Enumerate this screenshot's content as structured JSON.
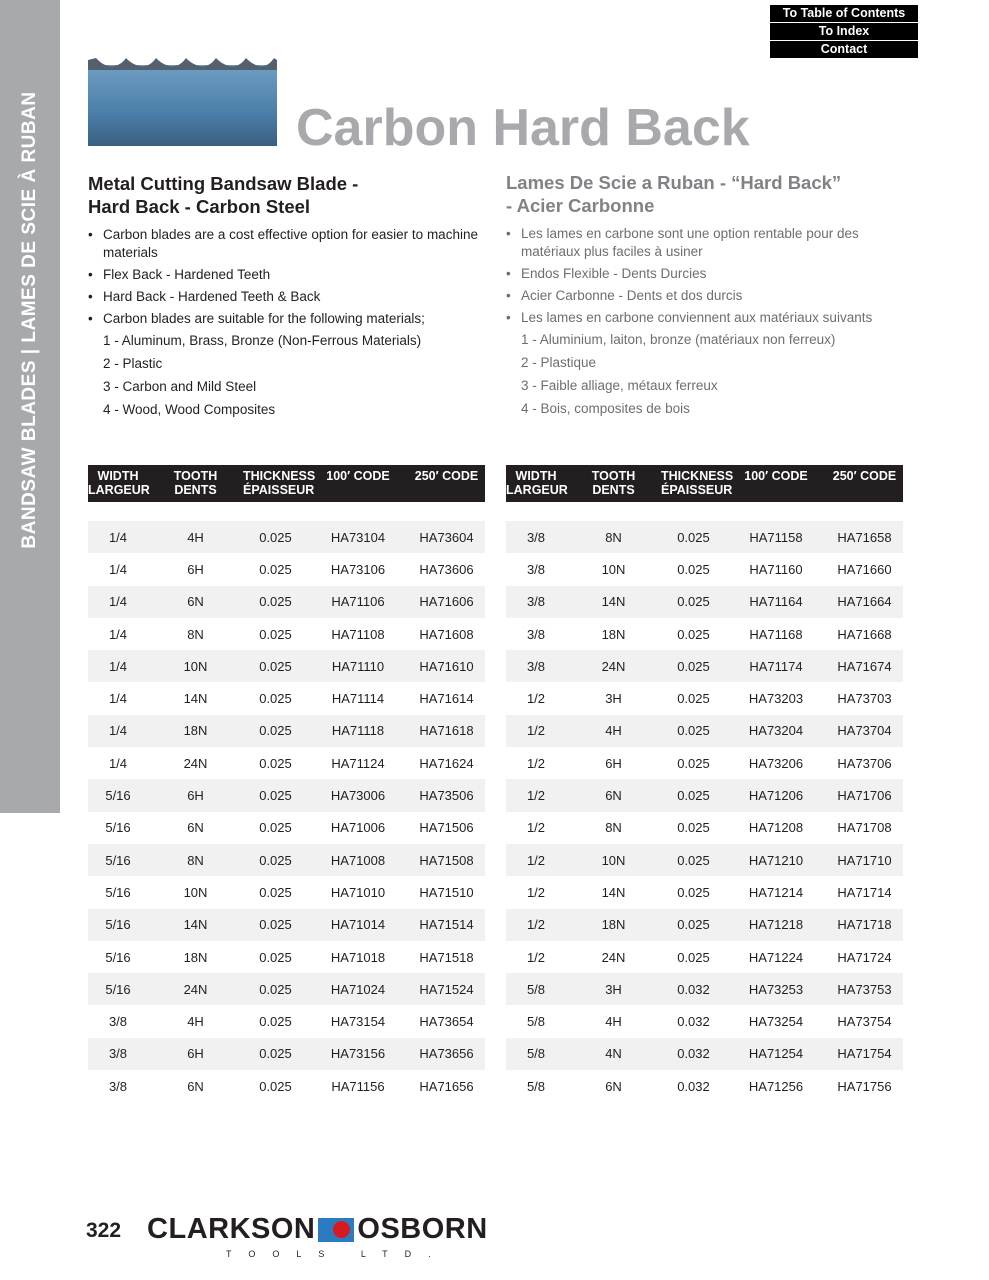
{
  "sidebar": {
    "text": "BANDSAW BLADES  |  LAMES DE SCIE À RUBAN"
  },
  "nav": [
    "To Table of Contents",
    "To Index",
    "Contact"
  ],
  "title": "Carbon Hard Back",
  "en": {
    "heading": [
      "Metal Cutting Bandsaw Blade -",
      "Hard Back - Carbon Steel"
    ],
    "items": [
      {
        "b": true,
        "t": "Carbon blades are a cost effective option for easier to machine materials"
      },
      {
        "b": true,
        "t": "Flex Back - Hardened Teeth"
      },
      {
        "b": true,
        "t": "Hard Back - Hardened Teeth & Back"
      },
      {
        "b": true,
        "t": "Carbon blades are suitable for the following materials;"
      },
      {
        "b": false,
        "t": "1 - Aluminum, Brass, Bronze (Non-Ferrous Materials)"
      },
      {
        "b": false,
        "t": "2 - Plastic"
      },
      {
        "b": false,
        "t": "3 - Carbon and Mild Steel"
      },
      {
        "b": false,
        "t": "4 - Wood, Wood Composites"
      }
    ]
  },
  "fr": {
    "heading": [
      "Lames De Scie a Ruban - “Hard Back”",
      "- Acier Carbonne"
    ],
    "items": [
      {
        "b": true,
        "t": "Les lames en carbone sont une option rentable pour des matériaux plus faciles à usiner"
      },
      {
        "b": true,
        "t": "Endos Flexible - Dents Durcies"
      },
      {
        "b": true,
        "t": "Acier Carbonne - Dents et dos durcis"
      },
      {
        "b": true,
        "t": "Les lames en carbone conviennent aux matériaux suivants"
      },
      {
        "b": false,
        "t": "1 - Aluminium, laiton, bronze (matériaux non ferreux)"
      },
      {
        "b": false,
        "t": "2 - Plastique"
      },
      {
        "b": false,
        "t": "3 - Faible alliage, métaux ferreux"
      },
      {
        "b": false,
        "t": "4 - Bois, composites de bois"
      }
    ]
  },
  "headers": [
    [
      "WIDTH",
      "LARGEUR"
    ],
    [
      "TOOTH",
      "DENTS"
    ],
    [
      "THICKNESS",
      "ÉPAISSEUR"
    ],
    [
      "100′ CODE",
      ""
    ],
    [
      "250′ CODE",
      ""
    ]
  ],
  "table_left": [
    [
      "1/4",
      "4H",
      "0.025",
      "HA73104",
      "HA73604"
    ],
    [
      "1/4",
      "6H",
      "0.025",
      "HA73106",
      "HA73606"
    ],
    [
      "1/4",
      "6N",
      "0.025",
      "HA71106",
      "HA71606"
    ],
    [
      "1/4",
      "8N",
      "0.025",
      "HA71108",
      "HA71608"
    ],
    [
      "1/4",
      "10N",
      "0.025",
      "HA71110",
      "HA71610"
    ],
    [
      "1/4",
      "14N",
      "0.025",
      "HA71114",
      "HA71614"
    ],
    [
      "1/4",
      "18N",
      "0.025",
      "HA71118",
      "HA71618"
    ],
    [
      "1/4",
      "24N",
      "0.025",
      "HA71124",
      "HA71624"
    ],
    [
      "5/16",
      "6H",
      "0.025",
      "HA73006",
      "HA73506"
    ],
    [
      "5/16",
      "6N",
      "0.025",
      "HA71006",
      "HA71506"
    ],
    [
      "5/16",
      "8N",
      "0.025",
      "HA71008",
      "HA71508"
    ],
    [
      "5/16",
      "10N",
      "0.025",
      "HA71010",
      "HA71510"
    ],
    [
      "5/16",
      "14N",
      "0.025",
      "HA71014",
      "HA71514"
    ],
    [
      "5/16",
      "18N",
      "0.025",
      "HA71018",
      "HA71518"
    ],
    [
      "5/16",
      "24N",
      "0.025",
      "HA71024",
      "HA71524"
    ],
    [
      "3/8",
      "4H",
      "0.025",
      "HA73154",
      "HA73654"
    ],
    [
      "3/8",
      "6H",
      "0.025",
      "HA73156",
      "HA73656"
    ],
    [
      "3/8",
      "6N",
      "0.025",
      "HA71156",
      "HA71656"
    ]
  ],
  "table_right": [
    [
      "3/8",
      "8N",
      "0.025",
      "HA71158",
      "HA71658"
    ],
    [
      "3/8",
      "10N",
      "0.025",
      "HA71160",
      "HA71660"
    ],
    [
      "3/8",
      "14N",
      "0.025",
      "HA71164",
      "HA71664"
    ],
    [
      "3/8",
      "18N",
      "0.025",
      "HA71168",
      "HA71668"
    ],
    [
      "3/8",
      "24N",
      "0.025",
      "HA71174",
      "HA71674"
    ],
    [
      "1/2",
      "3H",
      "0.025",
      "HA73203",
      "HA73703"
    ],
    [
      "1/2",
      "4H",
      "0.025",
      "HA73204",
      "HA73704"
    ],
    [
      "1/2",
      "6H",
      "0.025",
      "HA73206",
      "HA73706"
    ],
    [
      "1/2",
      "6N",
      "0.025",
      "HA71206",
      "HA71706"
    ],
    [
      "1/2",
      "8N",
      "0.025",
      "HA71208",
      "HA71708"
    ],
    [
      "1/2",
      "10N",
      "0.025",
      "HA71210",
      "HA71710"
    ],
    [
      "1/2",
      "14N",
      "0.025",
      "HA71214",
      "HA71714"
    ],
    [
      "1/2",
      "18N",
      "0.025",
      "HA71218",
      "HA71718"
    ],
    [
      "1/2",
      "24N",
      "0.025",
      "HA71224",
      "HA71724"
    ],
    [
      "5/8",
      "3H",
      "0.032",
      "HA73253",
      "HA73753"
    ],
    [
      "5/8",
      "4H",
      "0.032",
      "HA73254",
      "HA73754"
    ],
    [
      "5/8",
      "4N",
      "0.032",
      "HA71254",
      "HA71754"
    ],
    [
      "5/8",
      "6N",
      "0.032",
      "HA71256",
      "HA71756"
    ]
  ],
  "footer": {
    "page": "322",
    "brand_left": "CLARKSON",
    "brand_right": "OSBORN",
    "brand_sub": "TOOLS LTD."
  }
}
